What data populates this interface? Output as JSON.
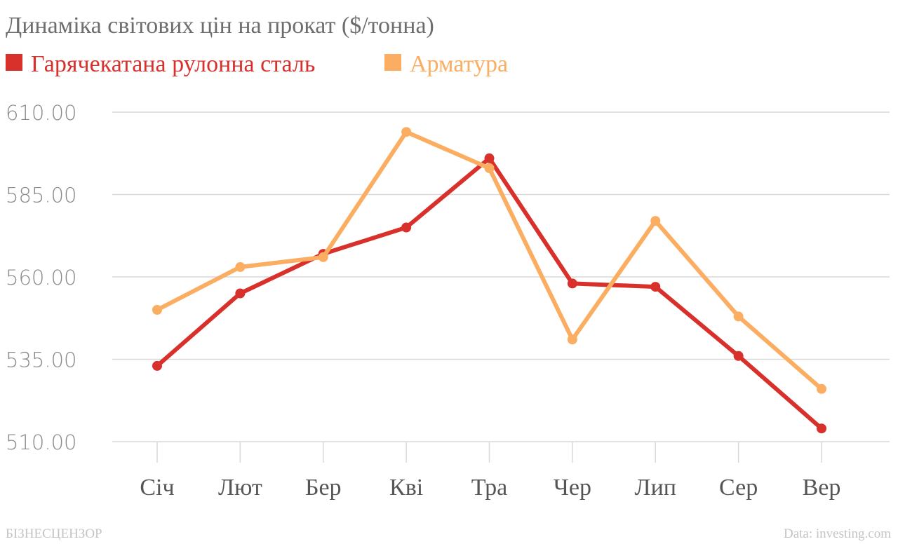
{
  "title": "Динаміка світових цін на прокат ($/тонна)",
  "footer": {
    "brand": "БІЗНЕСЦЕНЗОР",
    "source": "Data: investing.com"
  },
  "chart_data": {
    "type": "line",
    "title": "Динаміка світових цін на прокат ($/тонна)",
    "xlabel": "",
    "ylabel": "",
    "categories": [
      "Січ",
      "Лют",
      "Бер",
      "Кві",
      "Тра",
      "Чер",
      "Лип",
      "Сер",
      "Вер"
    ],
    "ylim": [
      510,
      610
    ],
    "yticks": [
      510,
      535,
      560,
      585,
      610
    ],
    "ytick_labels": [
      "510.00",
      "535.00",
      "560.00",
      "585.00",
      "610.00"
    ],
    "grid": true,
    "legend_position": "top-left",
    "series": [
      {
        "name": "Гарячекатана рулонна сталь",
        "color": "#d8312c",
        "values": [
          533,
          555,
          567,
          575,
          596,
          558,
          557,
          536,
          514
        ]
      },
      {
        "name": "Арматура",
        "color": "#fbad61",
        "values": [
          550,
          563,
          566,
          604,
          593,
          541,
          577,
          548,
          526
        ]
      }
    ]
  }
}
